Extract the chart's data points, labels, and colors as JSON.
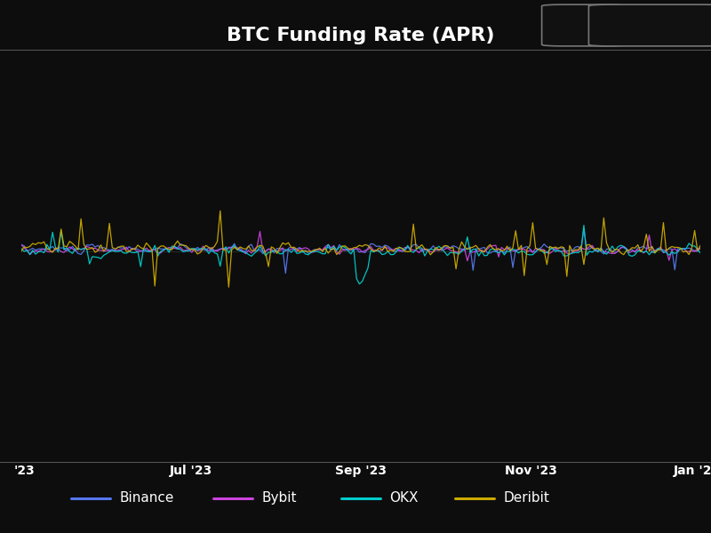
{
  "title": "BTC Funding Rate (APR)",
  "background_color": "#0d0d0d",
  "header_color": "#1c1c1c",
  "text_color": "#ffffff",
  "title_fontsize": 16,
  "legend_entries": [
    "Binance",
    "Bybit",
    "OKX",
    "Deribit"
  ],
  "legend_colors": [
    "#5577ee",
    "#cc44dd",
    "#00cccc",
    "#ccaa00"
  ],
  "ylim": [
    -1.5,
    1.5
  ],
  "n_points": 240,
  "seed": 42,
  "lw": 0.9
}
